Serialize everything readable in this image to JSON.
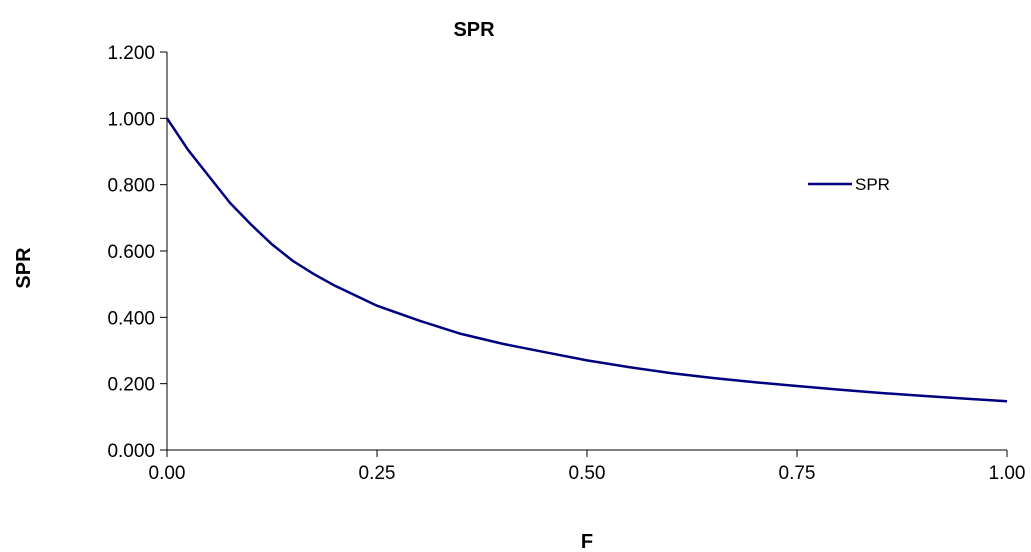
{
  "chart_data": {
    "type": "line",
    "title": "SPR",
    "xlabel": "F",
    "ylabel": "SPR",
    "xlim": [
      0,
      1
    ],
    "ylim": [
      0,
      1.2
    ],
    "x_ticks": [
      "0.00",
      "0.25",
      "0.50",
      "0.75",
      "1.00"
    ],
    "y_ticks": [
      "0.000",
      "0.200",
      "0.400",
      "0.600",
      "0.800",
      "1.000",
      "1.200"
    ],
    "grid": false,
    "legend_position": "right",
    "series": [
      {
        "name": "SPR",
        "color": "#000080",
        "x": [
          0.0,
          0.025,
          0.05,
          0.075,
          0.1,
          0.125,
          0.15,
          0.175,
          0.2,
          0.225,
          0.25,
          0.3,
          0.35,
          0.4,
          0.45,
          0.5,
          0.55,
          0.6,
          0.65,
          0.7,
          0.75,
          0.8,
          0.85,
          0.9,
          0.95,
          1.0
        ],
        "y": [
          1.0,
          0.905,
          0.825,
          0.745,
          0.68,
          0.62,
          0.57,
          0.53,
          0.495,
          0.465,
          0.435,
          0.39,
          0.35,
          0.32,
          0.295,
          0.27,
          0.25,
          0.232,
          0.217,
          0.204,
          0.193,
          0.182,
          0.172,
          0.163,
          0.155,
          0.147
        ]
      }
    ]
  }
}
